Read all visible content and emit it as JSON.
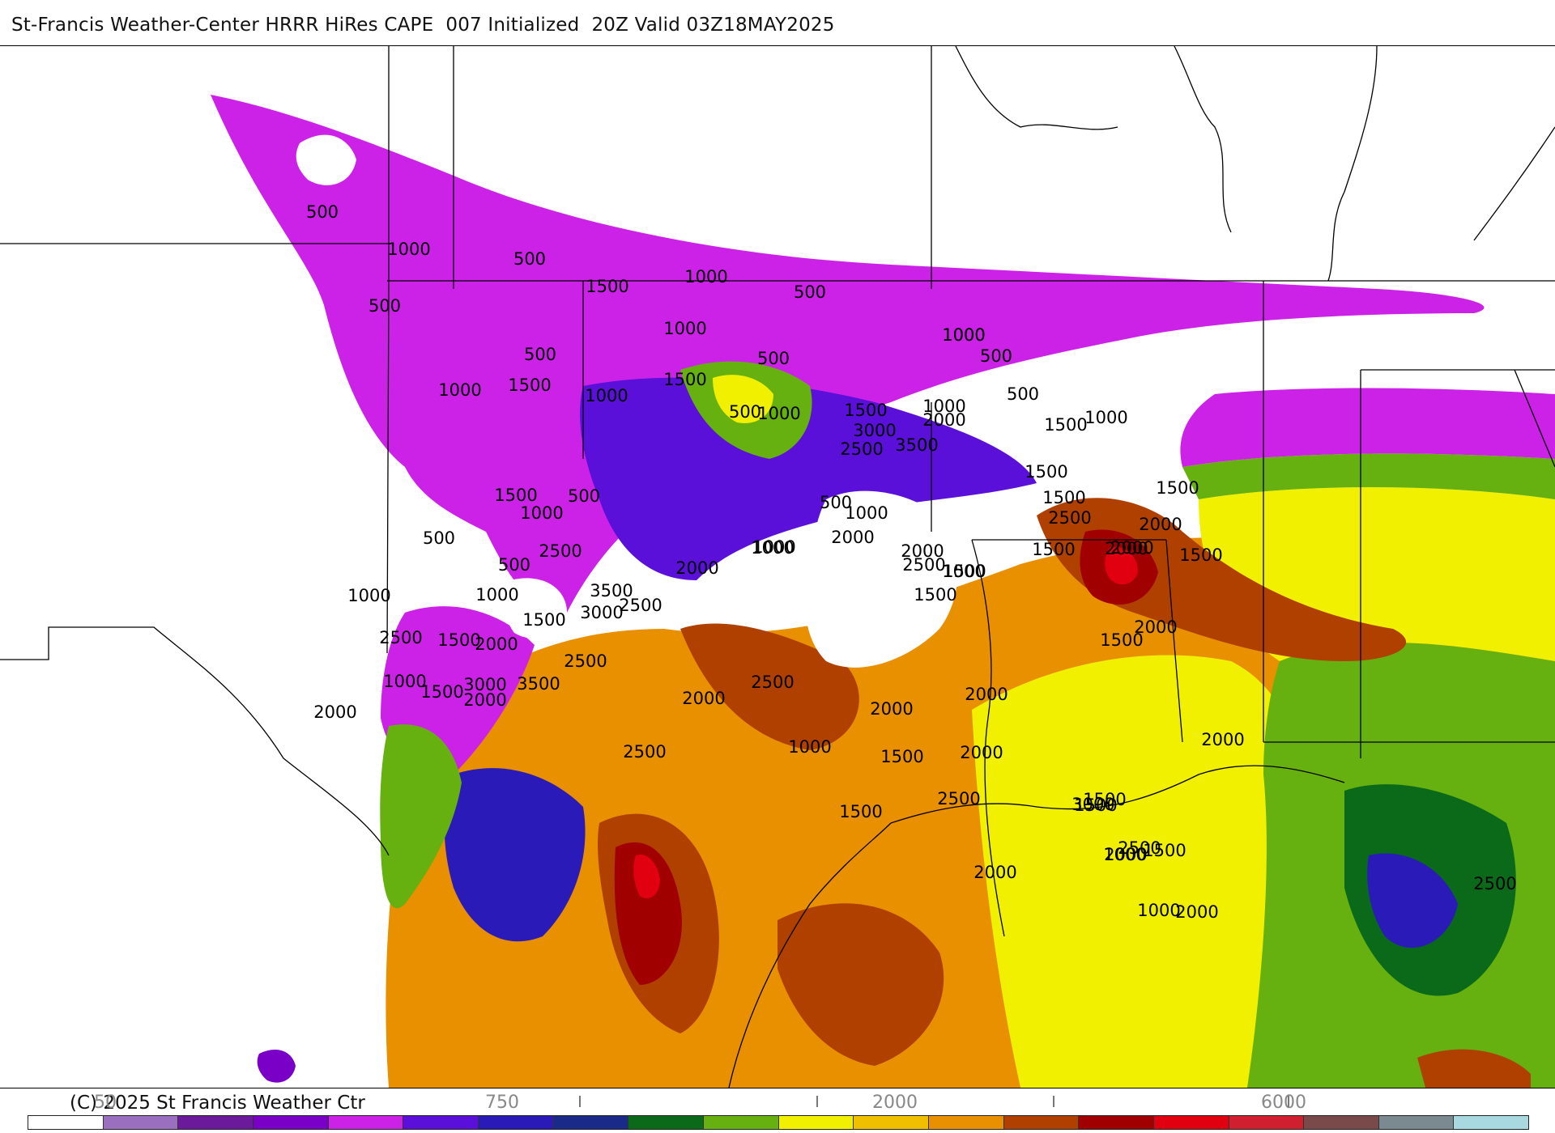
{
  "title": "St-Francis Weather-Center HRRR HiRes CAPE  007 Initialized  20Z Valid 03Z18MAY2025",
  "copyright": "(C) 2025 St Francis Weather Ctr",
  "legend": {
    "tick_labels": [
      "50",
      "750",
      "2000",
      "6000"
    ],
    "colors": [
      "#ffffff",
      "#9b6fc0",
      "#6a1a9a",
      "#7a00c8",
      "#cc22e8",
      "#5a10d8",
      "#2a1ab8",
      "#1a2a88",
      "#0a6a1a",
      "#66b010",
      "#f0f000",
      "#f0c000",
      "#e89000",
      "#b04000",
      "#a00000",
      "#e00010",
      "#d02030",
      "#7a4a4a",
      "#7a8a90",
      "#a8d8e0"
    ]
  },
  "map": {
    "cape_scale_colors": {
      "low": "#cc22e8",
      "mid_low": "#5a10d8",
      "mid": "#66b010",
      "mid_high": "#f0f000",
      "high": "#e89000",
      "very_high": "#b04000",
      "extreme": "#e00010"
    },
    "contour_labels": [
      "500",
      "1000",
      "500",
      "500",
      "1500",
      "1000",
      "500",
      "1000",
      "500",
      "1000",
      "1000",
      "500",
      "1500",
      "1000",
      "500",
      "1000",
      "1500",
      "1000",
      "1500",
      "500",
      "1000",
      "500",
      "1500",
      "1000",
      "2000",
      "3000",
      "2500",
      "3500",
      "1500",
      "1000",
      "500",
      "1500",
      "500",
      "1000",
      "1500",
      "2500",
      "2000",
      "1500",
      "2000",
      "2000",
      "1500",
      "500",
      "2500",
      "2000",
      "3500",
      "3000",
      "2500",
      "2000",
      "1000",
      "500",
      "1000",
      "1000",
      "1500",
      "2500",
      "1500",
      "2000",
      "1000",
      "1500",
      "2500",
      "1500",
      "3000",
      "3500",
      "2000",
      "2000",
      "2500",
      "2000",
      "2000",
      "1000",
      "2500",
      "2000",
      "1500",
      "1000",
      "1500",
      "2500",
      "1500",
      "2000",
      "1000",
      "1500",
      "2000",
      "2000",
      "1500",
      "2500",
      "3000",
      "2000",
      "2500",
      "1500",
      "1500",
      "1000",
      "1500",
      "2000",
      "2000",
      "1000",
      "2000",
      "2500"
    ]
  }
}
